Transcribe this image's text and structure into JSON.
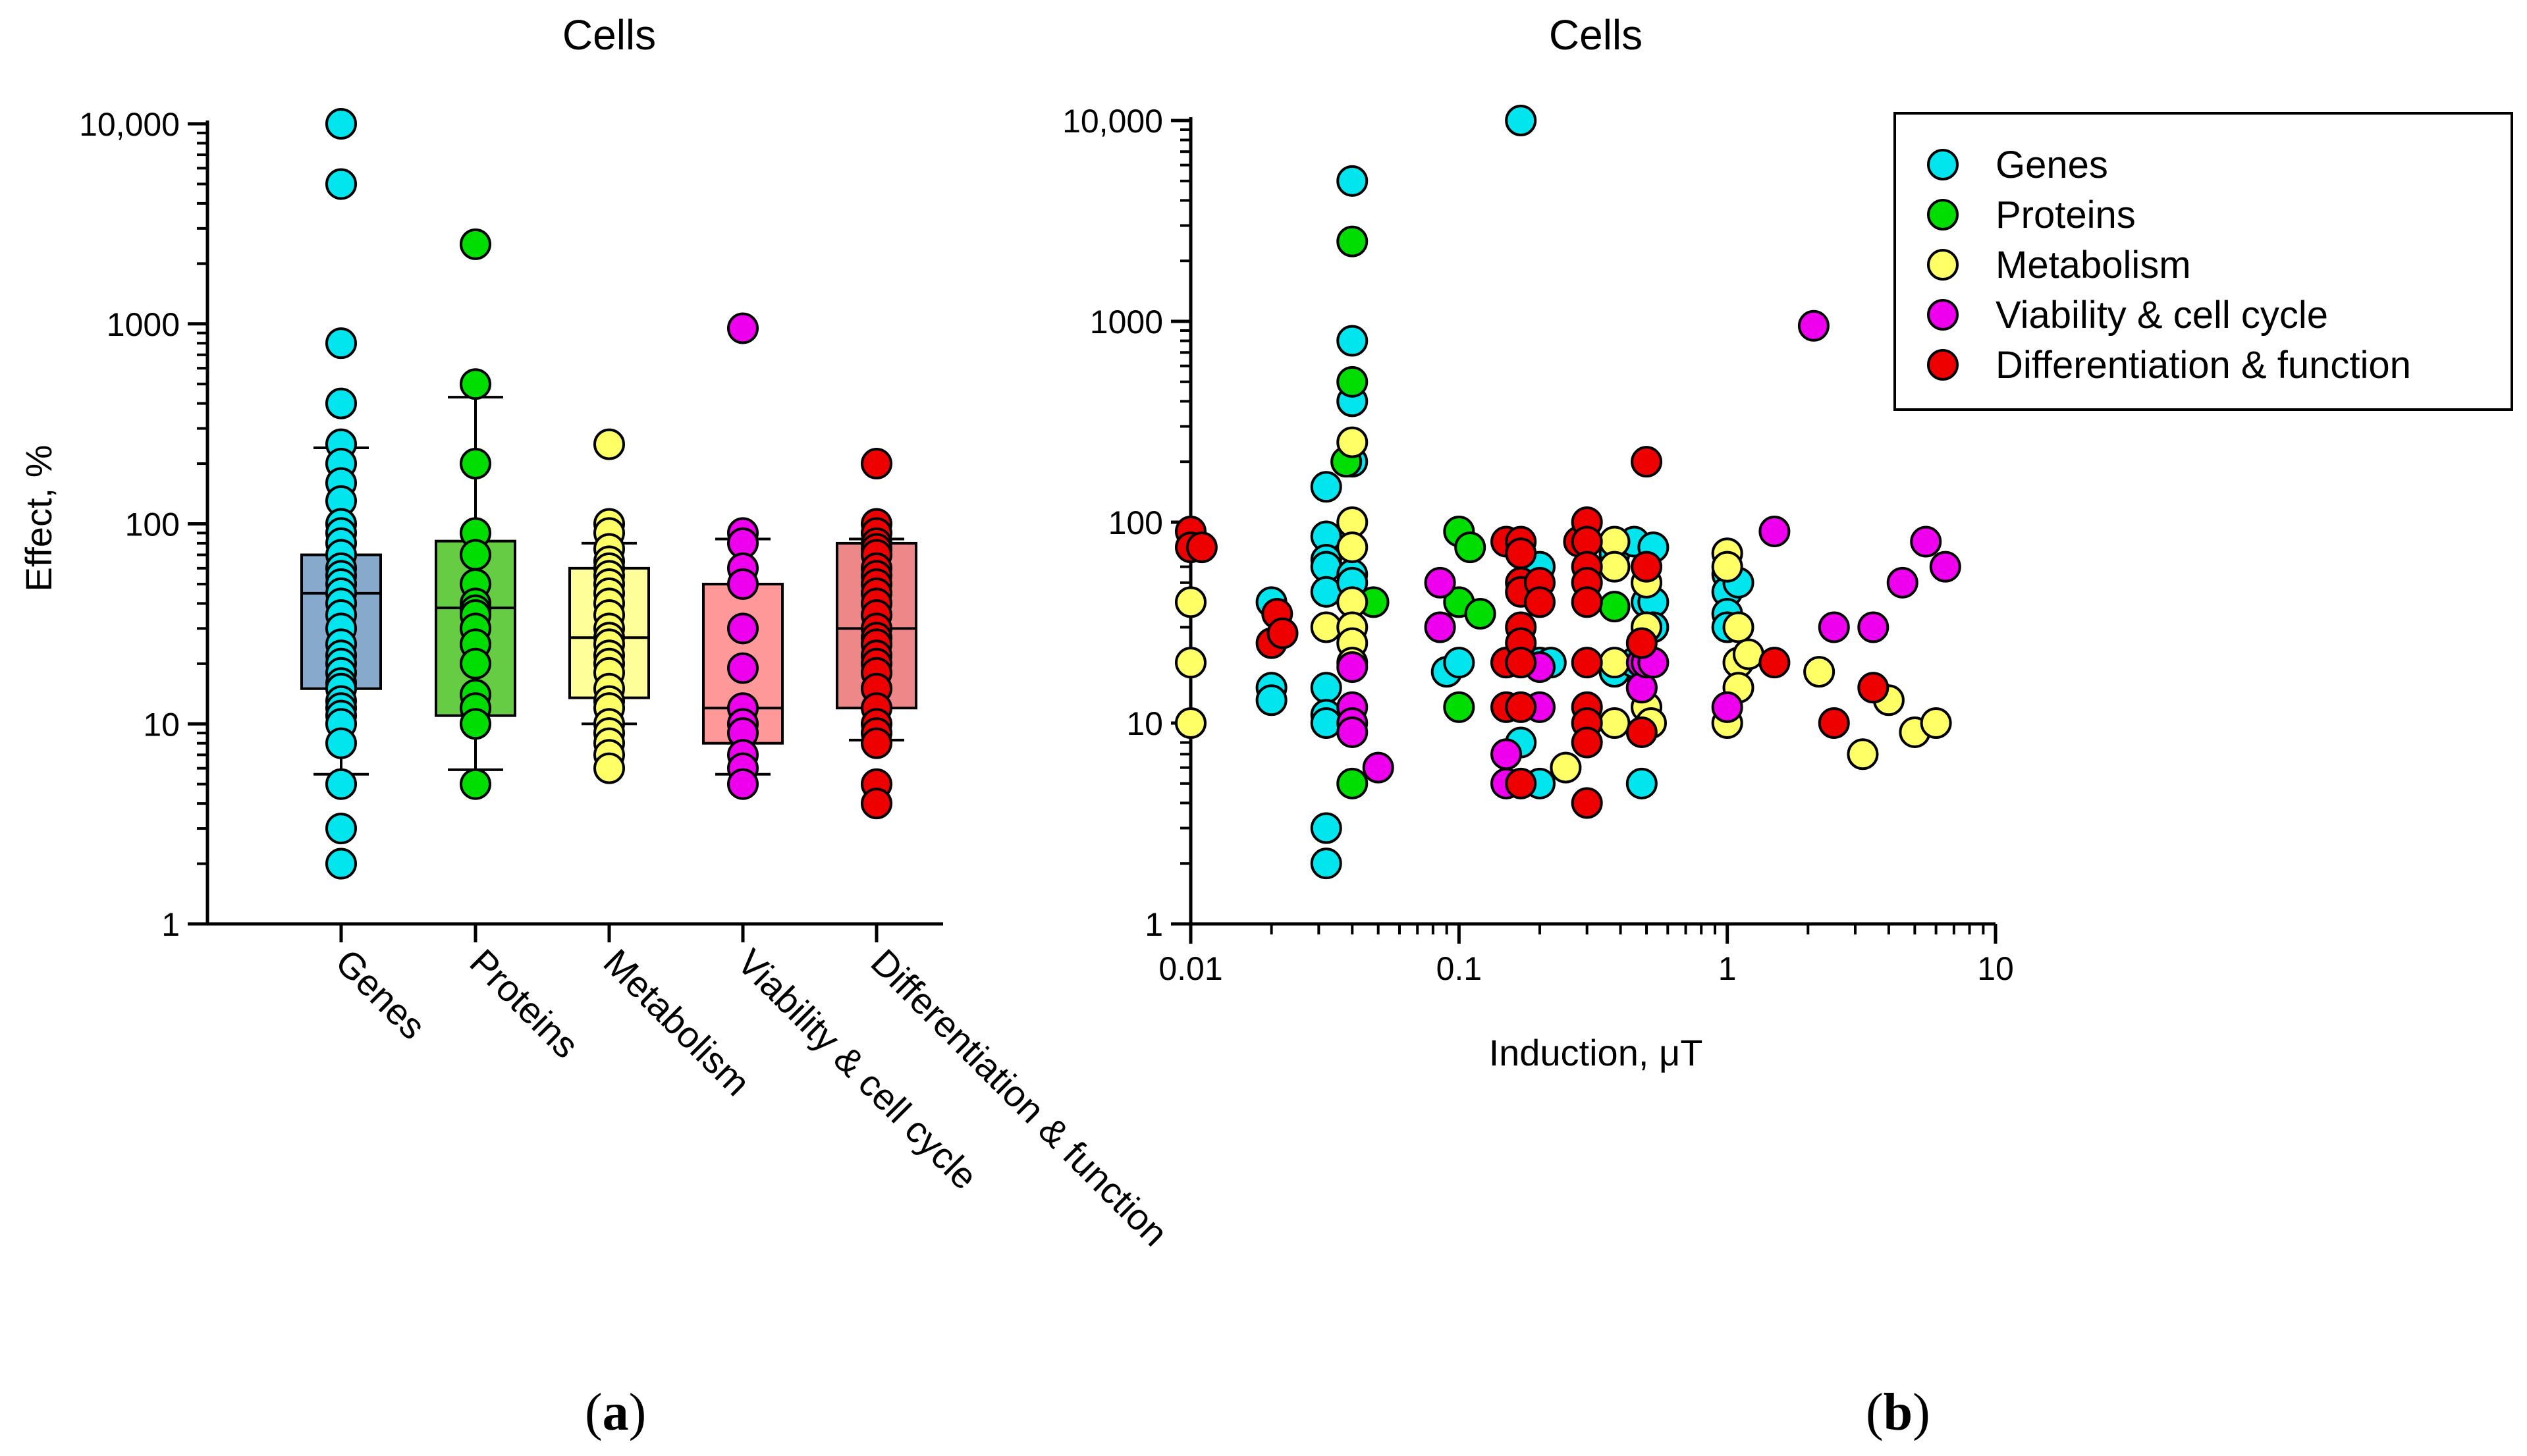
{
  "colors": {
    "genes": "#00e5ee",
    "proteins": "#00dd00",
    "metabolism": "#ffff66",
    "viability": "#ee00ee",
    "differentiation": "#ee0000",
    "genes_box": "#87a9cc",
    "proteins_box": "#66cc44",
    "metabolism_box": "#ffff99",
    "viability_box": "#ff9999",
    "differentiation_box": "#ee8888"
  },
  "panel_labels": {
    "a": "a",
    "b": "b"
  },
  "chart_data": [
    {
      "type": "box",
      "panel": "a",
      "title": "Cells",
      "xlabel": "",
      "ylabel": "Effect, %",
      "yscale": "log",
      "ylim": [
        1,
        10000
      ],
      "yticks": [
        1,
        10,
        100,
        1000,
        10000
      ],
      "ytick_labels": [
        "1",
        "10",
        "100",
        "1000",
        "10,000"
      ],
      "categories": [
        "Genes",
        "Proteins",
        "Metabolism",
        "Viability & cell cycle",
        "Differentiation & function"
      ],
      "boxes": [
        {
          "name": "Genes",
          "color_key": "genes",
          "box_key": "genes_box",
          "whisker_low": 5.6,
          "q1": 15,
          "median": 45,
          "q3": 70,
          "whisker_high": 240,
          "points": [
            10000,
            5000,
            800,
            400,
            250,
            200,
            160,
            130,
            100,
            90,
            80,
            70,
            60,
            55,
            50,
            45,
            40,
            35,
            30,
            25,
            22,
            20,
            18,
            16,
            15,
            13,
            12,
            11,
            10,
            8,
            5,
            3,
            2
          ]
        },
        {
          "name": "Proteins",
          "color_key": "proteins",
          "box_key": "proteins_box",
          "whisker_low": 5.9,
          "q1": 11,
          "median": 38,
          "q3": 82,
          "whisker_high": 430,
          "points": [
            2500,
            500,
            200,
            90,
            70,
            50,
            40,
            37,
            35,
            30,
            25,
            20,
            14,
            12,
            10,
            5
          ]
        },
        {
          "name": "Metabolism",
          "color_key": "metabolism",
          "box_key": "metabolism_box",
          "whisker_low": 10,
          "q1": 13.5,
          "median": 27,
          "q3": 60,
          "whisker_high": 80,
          "points": [
            250,
            100,
            90,
            75,
            65,
            60,
            55,
            50,
            45,
            40,
            35,
            30,
            27,
            25,
            22,
            20,
            18,
            15,
            13,
            12,
            10,
            9,
            8,
            7,
            6
          ]
        },
        {
          "name": "Viability & cell cycle",
          "color_key": "viability",
          "box_key": "viability_box",
          "whisker_low": 5.6,
          "q1": 8,
          "median": 12,
          "q3": 50,
          "whisker_high": 84,
          "points": [
            950,
            90,
            80,
            60,
            50,
            30,
            19,
            12,
            10,
            9,
            7,
            6,
            5
          ]
        },
        {
          "name": "Differentiation & function",
          "color_key": "differentiation",
          "box_key": "differentiation_box",
          "whisker_low": 8.3,
          "q1": 12,
          "median": 30,
          "q3": 80,
          "whisker_high": 84,
          "points": [
            200,
            100,
            90,
            80,
            75,
            70,
            60,
            55,
            50,
            45,
            40,
            35,
            30,
            27,
            25,
            22,
            20,
            18,
            15,
            12,
            10,
            9,
            8,
            5,
            4
          ]
        }
      ]
    },
    {
      "type": "scatter",
      "panel": "b",
      "title": "Cells",
      "xlabel": "Induction, μT",
      "ylabel": "",
      "xscale": "log",
      "yscale": "log",
      "xlim": [
        0.01,
        10
      ],
      "ylim": [
        1,
        10000
      ],
      "xticks": [
        0.01,
        0.1,
        1,
        10
      ],
      "xtick_labels": [
        "0.01",
        "0.1",
        "1",
        "10"
      ],
      "yticks": [
        1,
        10,
        100,
        1000,
        10000
      ],
      "ytick_labels": [
        "1",
        "10",
        "100",
        "1000",
        "10,000"
      ],
      "legend_position": "top-right",
      "series": [
        {
          "name": "Genes",
          "color_key": "genes",
          "points": [
            [
              0.02,
              40
            ],
            [
              0.02,
              15
            ],
            [
              0.02,
              13
            ],
            [
              0.032,
              150
            ],
            [
              0.032,
              85
            ],
            [
              0.032,
              65
            ],
            [
              0.032,
              60
            ],
            [
              0.032,
              45
            ],
            [
              0.032,
              15
            ],
            [
              0.032,
              11
            ],
            [
              0.032,
              10
            ],
            [
              0.032,
              3
            ],
            [
              0.032,
              2
            ],
            [
              0.04,
              5000
            ],
            [
              0.04,
              800
            ],
            [
              0.04,
              400
            ],
            [
              0.04,
              200
            ],
            [
              0.04,
              55
            ],
            [
              0.04,
              50
            ],
            [
              0.09,
              18
            ],
            [
              0.1,
              20
            ],
            [
              0.17,
              10000
            ],
            [
              0.17,
              8
            ],
            [
              0.2,
              60
            ],
            [
              0.2,
              20
            ],
            [
              0.2,
              5
            ],
            [
              0.22,
              20
            ],
            [
              0.38,
              70
            ],
            [
              0.38,
              18
            ],
            [
              0.45,
              80
            ],
            [
              0.45,
              20
            ],
            [
              0.48,
              15
            ],
            [
              0.48,
              5
            ],
            [
              0.5,
              40
            ],
            [
              0.5,
              30
            ],
            [
              0.53,
              75
            ],
            [
              0.53,
              40
            ],
            [
              0.53,
              30
            ],
            [
              1.0,
              55
            ],
            [
              1.0,
              45
            ],
            [
              1.0,
              35
            ],
            [
              1.0,
              30
            ],
            [
              1.1,
              50
            ]
          ]
        },
        {
          "name": "Proteins",
          "color_key": "proteins",
          "points": [
            [
              0.038,
              200
            ],
            [
              0.04,
              2500
            ],
            [
              0.04,
              500
            ],
            [
              0.04,
              5
            ],
            [
              0.048,
              40
            ],
            [
              0.1,
              90
            ],
            [
              0.1,
              40
            ],
            [
              0.1,
              12
            ],
            [
              0.11,
              75
            ],
            [
              0.12,
              35
            ],
            [
              0.38,
              38
            ]
          ]
        },
        {
          "name": "Metabolism",
          "color_key": "metabolism",
          "points": [
            [
              0.01,
              40
            ],
            [
              0.01,
              20
            ],
            [
              0.01,
              10
            ],
            [
              0.032,
              30
            ],
            [
              0.04,
              250
            ],
            [
              0.04,
              100
            ],
            [
              0.04,
              75
            ],
            [
              0.04,
              40
            ],
            [
              0.04,
              30
            ],
            [
              0.04,
              25
            ],
            [
              0.04,
              20
            ],
            [
              0.25,
              6
            ],
            [
              0.38,
              80
            ],
            [
              0.38,
              60
            ],
            [
              0.38,
              20
            ],
            [
              0.38,
              10
            ],
            [
              0.5,
              50
            ],
            [
              0.5,
              30
            ],
            [
              0.5,
              20
            ],
            [
              0.5,
              12
            ],
            [
              0.52,
              10
            ],
            [
              1.0,
              70
            ],
            [
              1.0,
              60
            ],
            [
              1.0,
              10
            ],
            [
              1.1,
              30
            ],
            [
              1.1,
              20
            ],
            [
              1.1,
              15
            ],
            [
              1.2,
              22
            ],
            [
              2.2,
              18
            ],
            [
              3.2,
              7
            ],
            [
              4.0,
              13
            ],
            [
              5.0,
              9
            ],
            [
              6.0,
              10
            ]
          ]
        },
        {
          "name": "Viability & cell cycle",
          "color_key": "viability",
          "points": [
            [
              0.04,
              19
            ],
            [
              0.04,
              12
            ],
            [
              0.04,
              10
            ],
            [
              0.04,
              9
            ],
            [
              0.05,
              6
            ],
            [
              0.085,
              50
            ],
            [
              0.085,
              30
            ],
            [
              0.15,
              20
            ],
            [
              0.15,
              7
            ],
            [
              0.15,
              5
            ],
            [
              0.2,
              19
            ],
            [
              0.2,
              12
            ],
            [
              0.48,
              20
            ],
            [
              0.48,
              15
            ],
            [
              0.5,
              20
            ],
            [
              0.53,
              20
            ],
            [
              1.0,
              12
            ],
            [
              1.5,
              90
            ],
            [
              2.1,
              950
            ],
            [
              2.5,
              30
            ],
            [
              3.5,
              30
            ],
            [
              4.5,
              50
            ],
            [
              5.5,
              80
            ],
            [
              6.5,
              60
            ]
          ]
        },
        {
          "name": "Differentiation & function",
          "color_key": "differentiation",
          "points": [
            [
              0.01,
              90
            ],
            [
              0.01,
              75
            ],
            [
              0.011,
              75
            ],
            [
              0.02,
              25
            ],
            [
              0.021,
              35
            ],
            [
              0.022,
              28
            ],
            [
              0.15,
              80
            ],
            [
              0.15,
              20
            ],
            [
              0.15,
              12
            ],
            [
              0.17,
              80
            ],
            [
              0.17,
              70
            ],
            [
              0.17,
              50
            ],
            [
              0.17,
              45
            ],
            [
              0.17,
              30
            ],
            [
              0.17,
              25
            ],
            [
              0.17,
              20
            ],
            [
              0.17,
              12
            ],
            [
              0.17,
              5
            ],
            [
              0.2,
              50
            ],
            [
              0.2,
              40
            ],
            [
              0.28,
              80
            ],
            [
              0.3,
              100
            ],
            [
              0.3,
              80
            ],
            [
              0.3,
              60
            ],
            [
              0.3,
              50
            ],
            [
              0.3,
              40
            ],
            [
              0.3,
              20
            ],
            [
              0.3,
              12
            ],
            [
              0.3,
              10
            ],
            [
              0.3,
              8
            ],
            [
              0.3,
              4
            ],
            [
              0.48,
              25
            ],
            [
              0.48,
              9
            ],
            [
              0.5,
              200
            ],
            [
              0.5,
              60
            ],
            [
              1.5,
              20
            ],
            [
              2.5,
              10
            ],
            [
              3.5,
              15
            ]
          ]
        }
      ]
    }
  ]
}
